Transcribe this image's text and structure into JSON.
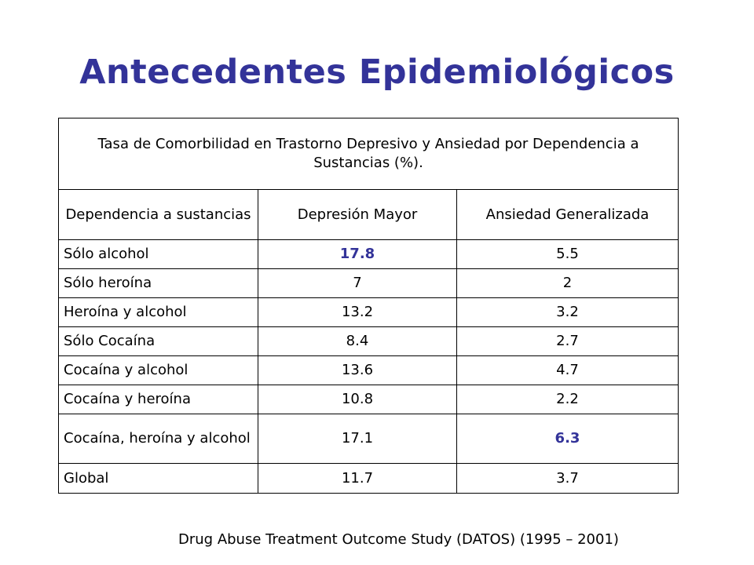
{
  "title": "Antecedentes Epidemiológicos",
  "table": {
    "caption": "Tasa de Comorbilidad en Trastorno Depresivo y Ansiedad por Dependencia a Sustancias (%).",
    "headers": [
      "Dependencia a sustancias",
      "Depresión Mayor",
      "Ansiedad Generalizada"
    ],
    "rows": [
      {
        "label": "Sólo alcohol",
        "depresion": "17.8",
        "ansiedad": "5.5"
      },
      {
        "label": "Sólo heroína",
        "depresion": "7",
        "ansiedad": "2"
      },
      {
        "label": "Heroína y alcohol",
        "depresion": "13.2",
        "ansiedad": "3.2"
      },
      {
        "label": "Sólo Cocaína",
        "depresion": "8.4",
        "ansiedad": "2.7"
      },
      {
        "label": "Cocaína y alcohol",
        "depresion": "13.6",
        "ansiedad": "4.7"
      },
      {
        "label": "Cocaína y heroína",
        "depresion": "10.8",
        "ansiedad": "2.2"
      },
      {
        "label": "Cocaína, heroína y alcohol",
        "depresion": "17.1",
        "ansiedad": "6.3"
      },
      {
        "label": "Global",
        "depresion": "11.7",
        "ansiedad": "3.7"
      }
    ],
    "highlighted_values": [
      "17.8",
      "6.3"
    ]
  },
  "source": "Drug Abuse Treatment Outcome Study (DATOS) (1995 – 2001)",
  "colors": {
    "accent": "#333399",
    "text": "#000000",
    "background": "#ffffff"
  }
}
